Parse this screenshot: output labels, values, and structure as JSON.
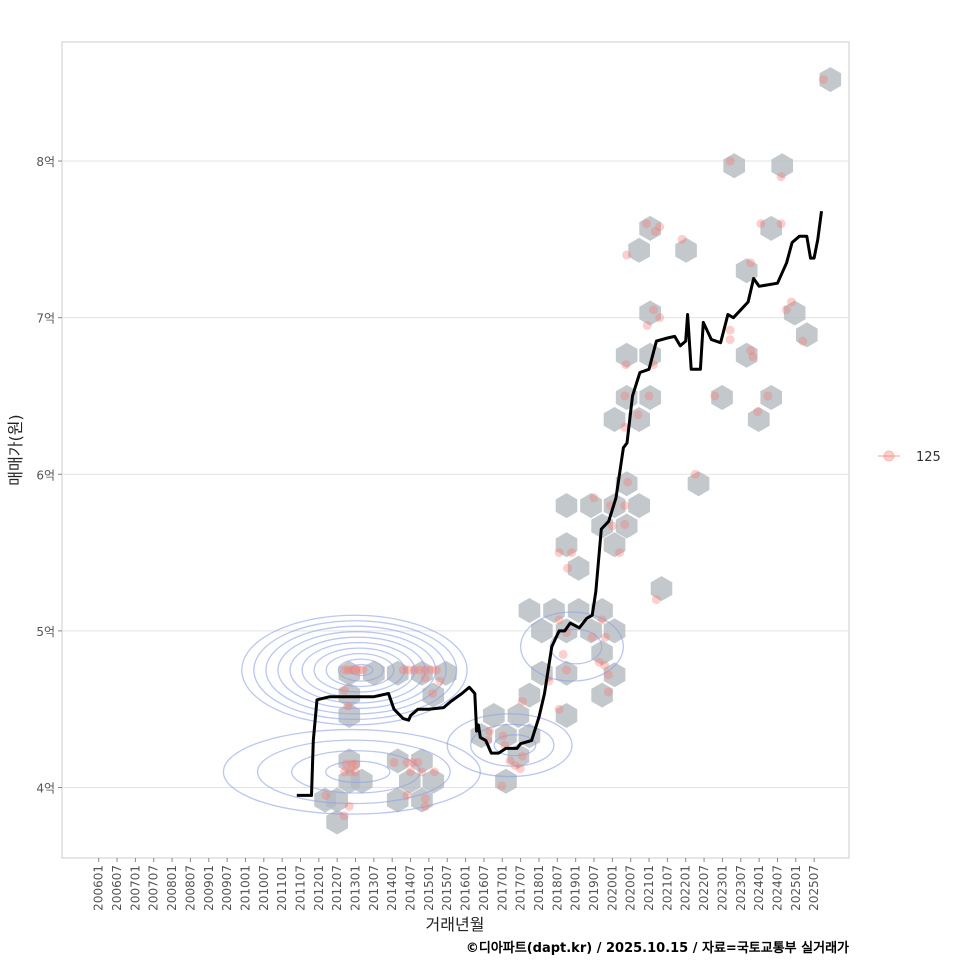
{
  "chart_data": {
    "type": "scatter",
    "title": "",
    "xlabel": "거래년월",
    "ylabel": "매매가(원)",
    "caption": "©디아파트(dapt.kr) / 2025.10.15 / 자료=국토교통부 실거래가",
    "xlim": [
      2005.0,
      2026.45
    ],
    "ylim": [
      3.55,
      8.76
    ],
    "grid": true,
    "y_ticks": [
      {
        "v": 4,
        "label": "4억"
      },
      {
        "v": 5,
        "label": "5억"
      },
      {
        "v": 6,
        "label": "6억"
      },
      {
        "v": 7,
        "label": "7억"
      },
      {
        "v": 8,
        "label": "8억"
      }
    ],
    "x_ticks": [
      "200601",
      "200607",
      "200701",
      "200707",
      "200801",
      "200807",
      "200901",
      "200907",
      "201001",
      "201007",
      "201101",
      "201107",
      "201201",
      "201207",
      "201301",
      "201307",
      "201401",
      "201407",
      "201501",
      "201507",
      "201601",
      "201607",
      "201701",
      "201707",
      "201801",
      "201807",
      "201901",
      "201907",
      "202001",
      "202007",
      "202101",
      "202107",
      "202201",
      "202207",
      "202301",
      "202307",
      "202401",
      "202407",
      "202501",
      "202507"
    ],
    "legend": {
      "position": "right",
      "entries": [
        {
          "label": "125",
          "color": "#f8766d"
        }
      ]
    },
    "colors": {
      "points": "#f8766d",
      "hex": "#b4babf",
      "contour": "#8da0e8",
      "line": "#000000",
      "grid": "#e3e3e3"
    },
    "moving_average": [
      [
        2011.4,
        3.95
      ],
      [
        2011.8,
        3.95
      ],
      [
        2011.85,
        4.3
      ],
      [
        2011.95,
        4.56
      ],
      [
        2012.3,
        4.58
      ],
      [
        2013.0,
        4.58
      ],
      [
        2013.5,
        4.58
      ],
      [
        2013.9,
        4.6
      ],
      [
        2014.05,
        4.5
      ],
      [
        2014.3,
        4.44
      ],
      [
        2014.45,
        4.43
      ],
      [
        2014.5,
        4.46
      ],
      [
        2014.7,
        4.5
      ],
      [
        2015.0,
        4.5
      ],
      [
        2015.4,
        4.51
      ],
      [
        2015.6,
        4.55
      ],
      [
        2015.9,
        4.6
      ],
      [
        2016.0,
        4.62
      ],
      [
        2016.1,
        4.64
      ],
      [
        2016.25,
        4.6
      ],
      [
        2016.3,
        4.36
      ],
      [
        2016.35,
        4.4
      ],
      [
        2016.4,
        4.32
      ],
      [
        2016.55,
        4.3
      ],
      [
        2016.7,
        4.22
      ],
      [
        2016.9,
        4.22
      ],
      [
        2017.1,
        4.25
      ],
      [
        2017.4,
        4.25
      ],
      [
        2017.5,
        4.28
      ],
      [
        2017.8,
        4.3
      ],
      [
        2018.0,
        4.45
      ],
      [
        2018.15,
        4.6
      ],
      [
        2018.35,
        4.9
      ],
      [
        2018.55,
        5.0
      ],
      [
        2018.7,
        5.0
      ],
      [
        2018.85,
        5.05
      ],
      [
        2019.1,
        5.02
      ],
      [
        2019.3,
        5.08
      ],
      [
        2019.45,
        5.1
      ],
      [
        2019.55,
        5.25
      ],
      [
        2019.7,
        5.65
      ],
      [
        2019.9,
        5.7
      ],
      [
        2020.1,
        5.85
      ],
      [
        2020.3,
        6.17
      ],
      [
        2020.4,
        6.2
      ],
      [
        2020.55,
        6.5
      ],
      [
        2020.75,
        6.65
      ],
      [
        2021.0,
        6.67
      ],
      [
        2021.2,
        6.85
      ],
      [
        2021.5,
        6.87
      ],
      [
        2021.7,
        6.88
      ],
      [
        2021.85,
        6.82
      ],
      [
        2022.0,
        6.85
      ],
      [
        2022.05,
        7.02
      ],
      [
        2022.15,
        6.67
      ],
      [
        2022.4,
        6.67
      ],
      [
        2022.48,
        6.97
      ],
      [
        2022.7,
        6.86
      ],
      [
        2022.95,
        6.84
      ],
      [
        2023.15,
        7.02
      ],
      [
        2023.3,
        7.0
      ],
      [
        2023.5,
        7.05
      ],
      [
        2023.7,
        7.1
      ],
      [
        2023.85,
        7.25
      ],
      [
        2024.0,
        7.2
      ],
      [
        2024.5,
        7.22
      ],
      [
        2024.75,
        7.35
      ],
      [
        2024.9,
        7.48
      ],
      [
        2025.1,
        7.52
      ],
      [
        2025.3,
        7.52
      ],
      [
        2025.4,
        7.38
      ],
      [
        2025.5,
        7.38
      ],
      [
        2025.6,
        7.5
      ],
      [
        2025.7,
        7.68
      ]
    ],
    "hexbins": [
      [
        2025.94,
        8.52
      ],
      [
        2023.32,
        7.97
      ],
      [
        2024.63,
        7.97
      ],
      [
        2021.03,
        7.57
      ],
      [
        2020.73,
        7.43
      ],
      [
        2022.01,
        7.43
      ],
      [
        2024.33,
        7.57
      ],
      [
        2023.66,
        7.3
      ],
      [
        2021.03,
        7.03
      ],
      [
        2024.97,
        7.03
      ],
      [
        2025.3,
        6.89
      ],
      [
        2020.39,
        6.76
      ],
      [
        2021.03,
        6.76
      ],
      [
        2023.66,
        6.76
      ],
      [
        2020.39,
        6.49
      ],
      [
        2021.03,
        6.49
      ],
      [
        2022.99,
        6.49
      ],
      [
        2024.33,
        6.49
      ],
      [
        2023.99,
        6.35
      ],
      [
        2020.06,
        6.35
      ],
      [
        2020.73,
        6.35
      ],
      [
        2020.39,
        5.94
      ],
      [
        2022.35,
        5.94
      ],
      [
        2018.75,
        5.8
      ],
      [
        2019.42,
        5.8
      ],
      [
        2020.06,
        5.8
      ],
      [
        2020.73,
        5.8
      ],
      [
        2019.72,
        5.67
      ],
      [
        2020.39,
        5.67
      ],
      [
        2020.06,
        5.55
      ],
      [
        2018.75,
        5.55
      ],
      [
        2019.08,
        5.4
      ],
      [
        2021.34,
        5.27
      ],
      [
        2017.74,
        5.13
      ],
      [
        2018.41,
        5.13
      ],
      [
        2019.08,
        5.13
      ],
      [
        2019.72,
        5.13
      ],
      [
        2018.08,
        5.0
      ],
      [
        2018.75,
        5.0
      ],
      [
        2019.42,
        5.0
      ],
      [
        2020.06,
        5.0
      ],
      [
        2018.08,
        4.73
      ],
      [
        2018.75,
        4.73
      ],
      [
        2019.72,
        4.86
      ],
      [
        2020.06,
        4.72
      ],
      [
        2017.74,
        4.59
      ],
      [
        2018.75,
        4.46
      ],
      [
        2019.72,
        4.59
      ],
      [
        2016.77,
        4.46
      ],
      [
        2017.44,
        4.46
      ],
      [
        2016.43,
        4.33
      ],
      [
        2017.1,
        4.33
      ],
      [
        2017.74,
        4.33
      ],
      [
        2017.1,
        4.04
      ],
      [
        2017.44,
        4.2
      ],
      [
        2012.83,
        4.73
      ],
      [
        2012.83,
        4.59
      ],
      [
        2012.83,
        4.46
      ],
      [
        2013.5,
        4.73
      ],
      [
        2014.15,
        4.73
      ],
      [
        2014.81,
        4.73
      ],
      [
        2015.46,
        4.73
      ],
      [
        2015.12,
        4.59
      ],
      [
        2012.83,
        4.17
      ],
      [
        2012.83,
        4.04
      ],
      [
        2012.5,
        3.92
      ],
      [
        2012.17,
        3.92
      ],
      [
        2012.5,
        3.78
      ],
      [
        2013.17,
        4.04
      ],
      [
        2014.15,
        4.17
      ],
      [
        2014.81,
        4.17
      ],
      [
        2014.48,
        4.04
      ],
      [
        2015.12,
        4.04
      ],
      [
        2014.15,
        3.92
      ],
      [
        2014.81,
        3.92
      ]
    ],
    "points": [
      [
        2025.75,
        8.52
      ],
      [
        2023.21,
        8.0
      ],
      [
        2024.6,
        7.9
      ],
      [
        2020.93,
        7.6
      ],
      [
        2021.17,
        7.55
      ],
      [
        2021.29,
        7.58
      ],
      [
        2020.39,
        7.4
      ],
      [
        2021.9,
        7.5
      ],
      [
        2024.05,
        7.6
      ],
      [
        2024.6,
        7.6
      ],
      [
        2023.77,
        7.35
      ],
      [
        2021.12,
        7.05
      ],
      [
        2020.95,
        6.95
      ],
      [
        2021.29,
        7.0
      ],
      [
        2024.88,
        7.1
      ],
      [
        2024.74,
        7.05
      ],
      [
        2025.19,
        6.85
      ],
      [
        2023.77,
        6.79
      ],
      [
        2023.83,
        6.75
      ],
      [
        2023.21,
        6.86
      ],
      [
        2023.21,
        6.92
      ],
      [
        2020.37,
        6.7
      ],
      [
        2021.12,
        6.7
      ],
      [
        2022.79,
        6.5
      ],
      [
        2021.0,
        6.5
      ],
      [
        2020.34,
        6.5
      ],
      [
        2024.24,
        6.5
      ],
      [
        2023.96,
        6.4
      ],
      [
        2020.7,
        6.38
      ],
      [
        2020.34,
        6.3
      ],
      [
        2022.26,
        6.0
      ],
      [
        2020.42,
        5.95
      ],
      [
        2019.5,
        5.85
      ],
      [
        2019.95,
        5.8
      ],
      [
        2020.34,
        5.8
      ],
      [
        2020.0,
        5.67
      ],
      [
        2020.34,
        5.68
      ],
      [
        2020.2,
        5.5
      ],
      [
        2018.55,
        5.5
      ],
      [
        2018.89,
        5.5
      ],
      [
        2018.78,
        5.4
      ],
      [
        2021.2,
        5.2
      ],
      [
        2018.55,
        5.07
      ],
      [
        2019.72,
        5.07
      ],
      [
        2018.75,
        4.99
      ],
      [
        2019.45,
        4.96
      ],
      [
        2019.81,
        4.96
      ],
      [
        2018.66,
        4.85
      ],
      [
        2019.64,
        4.8
      ],
      [
        2019.79,
        4.78
      ],
      [
        2018.75,
        4.75
      ],
      [
        2019.89,
        4.72
      ],
      [
        2019.89,
        4.61
      ],
      [
        2018.27,
        4.68
      ],
      [
        2018.55,
        4.5
      ],
      [
        2017.55,
        4.55
      ],
      [
        2016.65,
        4.36
      ],
      [
        2017.02,
        4.33
      ],
      [
        2017.07,
        4.27
      ],
      [
        2017.21,
        4.17
      ],
      [
        2017.35,
        4.14
      ],
      [
        2017.55,
        4.2
      ],
      [
        2017.49,
        4.12
      ],
      [
        2016.99,
        4.01
      ],
      [
        2016.6,
        4.3
      ],
      [
        2012.19,
        3.95
      ],
      [
        2012.69,
        3.82
      ],
      [
        2012.83,
        3.88
      ],
      [
        2012.7,
        4.75
      ],
      [
        2012.8,
        4.75
      ],
      [
        2012.9,
        4.75
      ],
      [
        2013.0,
        4.75
      ],
      [
        2013.1,
        4.75
      ],
      [
        2013.2,
        4.75
      ],
      [
        2014.3,
        4.75
      ],
      [
        2014.45,
        4.75
      ],
      [
        2014.6,
        4.75
      ],
      [
        2014.75,
        4.75
      ],
      [
        2014.9,
        4.75
      ],
      [
        2015.05,
        4.75
      ],
      [
        2015.2,
        4.75
      ],
      [
        2012.7,
        4.62
      ],
      [
        2012.8,
        4.52
      ],
      [
        2015.1,
        4.6
      ],
      [
        2015.3,
        4.68
      ],
      [
        2014.9,
        4.7
      ],
      [
        2012.75,
        4.15
      ],
      [
        2012.9,
        4.15
      ],
      [
        2013.0,
        4.15
      ],
      [
        2012.7,
        4.1
      ],
      [
        2012.85,
        4.1
      ],
      [
        2013.0,
        4.1
      ],
      [
        2014.4,
        4.16
      ],
      [
        2014.55,
        4.16
      ],
      [
        2014.7,
        4.16
      ],
      [
        2014.5,
        4.1
      ],
      [
        2014.8,
        4.1
      ],
      [
        2015.15,
        4.1
      ],
      [
        2014.05,
        4.16
      ],
      [
        2014.4,
        3.95
      ],
      [
        2014.9,
        3.93
      ],
      [
        2014.9,
        3.88
      ]
    ],
    "density_contours": [
      {
        "center": [
          2012.97,
          4.75
        ],
        "spread": [
          3.07,
          0.35
        ],
        "levels": 10
      },
      {
        "center": [
          2012.9,
          4.1
        ],
        "spread": [
          3.5,
          0.27
        ],
        "levels": 4
      },
      {
        "center": [
          2017.2,
          4.27
        ],
        "spread": [
          1.7,
          0.2
        ],
        "levels": 3
      },
      {
        "center": [
          2018.9,
          4.9
        ],
        "spread": [
          1.4,
          0.22
        ],
        "levels": 2
      }
    ]
  }
}
